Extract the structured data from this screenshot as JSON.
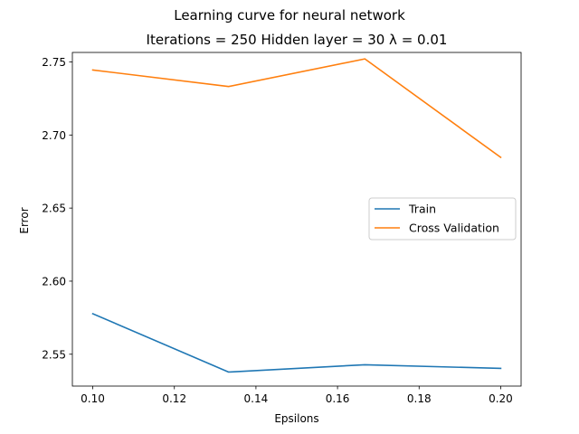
{
  "chart_data": {
    "type": "line",
    "suptitle": "Learning curve for neural network",
    "title": "Iterations = 250 Hidden layer = 30 λ = 0.01",
    "xlabel": "Epsilons",
    "ylabel": "Error",
    "x": [
      0.1,
      0.1333,
      0.1667,
      0.2
    ],
    "xlim": [
      0.095,
      0.205
    ],
    "ylim": [
      2.5282,
      2.7565
    ],
    "xticks": [
      0.1,
      0.12,
      0.14,
      0.16,
      0.18,
      0.2
    ],
    "xtick_labels": [
      "0.10",
      "0.12",
      "0.14",
      "0.16",
      "0.18",
      "0.20"
    ],
    "yticks": [
      2.55,
      2.6,
      2.65,
      2.7,
      2.75
    ],
    "ytick_labels": [
      "2.55",
      "2.60",
      "2.65",
      "2.70",
      "2.75"
    ],
    "grid": false,
    "legend_position": "center-right",
    "series": [
      {
        "name": "Train",
        "color": "#1f77b4",
        "values": [
          2.5777,
          2.5378,
          2.5428,
          2.5403
        ]
      },
      {
        "name": "Cross Validation",
        "color": "#ff7f0e",
        "values": [
          2.7445,
          2.7332,
          2.7521,
          2.6847
        ]
      }
    ]
  }
}
